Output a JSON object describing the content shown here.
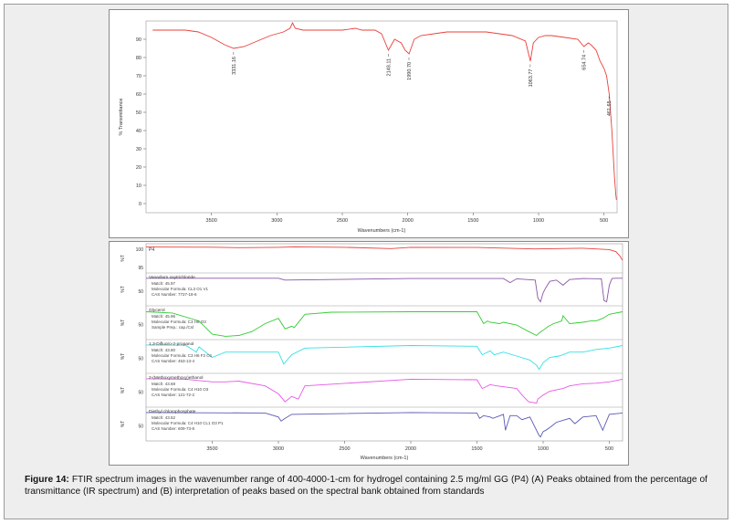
{
  "caption": {
    "label": "Figure 14:",
    "text": "FTIR spectrum images in the wavenumber range of 400-4000-1-cm for hydrogel containing 2.5 mg/ml GG (P4) (A) Peaks obtained from the percentage of transmittance (IR spectrum) and (B) interpretation of peaks based on the spectral bank obtained from standards"
  },
  "chart_data": [
    {
      "type": "line",
      "xlabel": "Wavenumbers (cm-1)",
      "ylabel": "% Transmittance",
      "x_reversed": true,
      "xlim": [
        4000,
        400
      ],
      "ylim": [
        -5,
        100
      ],
      "x_ticks": [
        3500,
        3000,
        2500,
        2000,
        1500,
        1000,
        500
      ],
      "y_ticks": [
        0,
        10,
        20,
        30,
        40,
        50,
        60,
        70,
        80,
        90
      ],
      "color": "#e8413c",
      "series": [
        {
          "x": [
            3950,
            3800,
            3700,
            3600,
            3500,
            3400,
            3331,
            3250,
            3150,
            3050,
            2950,
            2900,
            2880,
            2860,
            2800,
            2700,
            2600,
            2500,
            2400,
            2350,
            2250,
            2200,
            2148,
            2100,
            2050,
            2020,
            1990,
            1950,
            1900,
            1800,
            1700,
            1600,
            1500,
            1400,
            1300,
            1200,
            1100,
            1063,
            1040,
            1000,
            950,
            900,
            800,
            700,
            654,
            620,
            600,
            560,
            530,
            500,
            480,
            460,
            440,
            420,
            410,
            405
          ],
          "y": [
            95,
            95,
            95,
            94,
            91,
            87,
            85,
            86,
            89,
            92,
            94,
            96,
            99,
            96,
            95,
            95,
            95,
            95,
            96,
            95,
            95,
            93,
            84,
            90,
            88,
            84,
            82,
            90,
            92,
            93,
            94,
            94,
            94,
            94,
            93,
            92,
            89,
            78,
            88,
            91,
            92,
            92,
            91,
            90,
            86,
            88,
            87,
            84,
            78,
            74,
            70,
            60,
            40,
            15,
            5,
            2
          ]
        }
      ],
      "annotations": [
        {
          "x": 3331.16,
          "label": "3331.16"
        },
        {
          "x": 2148.11,
          "label": "2148.11"
        },
        {
          "x": 1990.7,
          "label": "1990.70"
        },
        {
          "x": 1063.77,
          "label": "1063.77"
        },
        {
          "x": 654.74,
          "label": "654.74"
        },
        {
          "x": 461.65,
          "label": "461.65"
        }
      ]
    },
    {
      "type": "line",
      "xlabel": "Wavenumbers (cm-1)",
      "x_reversed": true,
      "xlim": [
        4000,
        400
      ],
      "x_ticks": [
        3500,
        3000,
        2500,
        2000,
        1500,
        1000,
        500
      ],
      "series": [
        {
          "title": "P4",
          "color": "#e8413c",
          "ylabel": "%T",
          "y_ticks": [
            100,
            95
          ],
          "x": [
            4000,
            3500,
            3300,
            3000,
            2880,
            2500,
            2148,
            2000,
            1500,
            1063,
            700,
            600,
            500,
            450,
            420,
            400
          ],
          "y": [
            0.97,
            0.96,
            0.93,
            0.95,
            0.98,
            0.95,
            0.88,
            0.95,
            0.94,
            0.86,
            0.9,
            0.86,
            0.82,
            0.7,
            0.45,
            0.2
          ]
        },
        {
          "title": "Vanadium oxytrichloride",
          "color": "#8a55a6",
          "ylabel": "%T",
          "y_ticks": [
            50
          ],
          "match": "Match: 45.97",
          "formula": "Molecular Formula: CL3 O1 V1",
          "cas": "CAS Number: 7727-18-6",
          "extra": "",
          "x": [
            4000,
            3000,
            2950,
            2000,
            1300,
            1250,
            1200,
            1060,
            1040,
            1020,
            1000,
            980,
            950,
            900,
            850,
            800,
            700,
            560,
            540,
            520,
            500,
            480,
            450,
            400
          ],
          "y": [
            0.97,
            0.97,
            0.9,
            0.96,
            0.96,
            0.8,
            0.95,
            0.9,
            0.2,
            0.05,
            0.4,
            0.6,
            0.85,
            0.9,
            0.7,
            0.92,
            0.96,
            0.95,
            0.1,
            0.05,
            0.7,
            0.96,
            0.97,
            0.97
          ]
        },
        {
          "title": "Glycerol",
          "color": "#33cc33",
          "ylabel": "%T",
          "y_ticks": [
            50
          ],
          "match": "Match: 45.96",
          "formula": "Molecular Formula: C3 H8 O3",
          "cas": "",
          "extra": "Sample Prep.: cap./Csl",
          "x": [
            4000,
            3800,
            3600,
            3500,
            3400,
            3300,
            3200,
            3100,
            3000,
            2950,
            2900,
            2880,
            2800,
            2600,
            2000,
            1500,
            1450,
            1420,
            1400,
            1330,
            1300,
            1200,
            1110,
            1050,
            1030,
            1000,
            960,
            920,
            860,
            850,
            800,
            700,
            640,
            600,
            550,
            500,
            400
          ],
          "y": [
            0.95,
            0.9,
            0.6,
            0.1,
            0.02,
            0.05,
            0.2,
            0.5,
            0.7,
            0.3,
            0.4,
            0.35,
            0.85,
            0.93,
            0.95,
            0.95,
            0.5,
            0.6,
            0.55,
            0.5,
            0.55,
            0.45,
            0.2,
            0.05,
            0.15,
            0.25,
            0.4,
            0.5,
            0.6,
            0.8,
            0.5,
            0.55,
            0.6,
            0.6,
            0.7,
            0.85,
            0.95
          ]
        },
        {
          "title": "1,3-Difluoro-2-propanol",
          "color": "#33e0e6",
          "ylabel": "%T",
          "y_ticks": [
            50
          ],
          "match": "Match: 43.80",
          "formula": "Molecular Formula: C3 H6 F2 O1",
          "cas": "CAS Number: 453-13-4",
          "extra": "",
          "x": [
            4000,
            3700,
            3620,
            3600,
            3500,
            3400,
            3000,
            2960,
            2900,
            2800,
            2000,
            1500,
            1460,
            1400,
            1370,
            1300,
            1200,
            1100,
            1050,
            1030,
            1000,
            950,
            880,
            850,
            800,
            700,
            650,
            600,
            500,
            400
          ],
          "y": [
            0.97,
            0.96,
            0.7,
            0.9,
            0.5,
            0.7,
            0.7,
            0.25,
            0.6,
            0.85,
            0.95,
            0.92,
            0.6,
            0.75,
            0.6,
            0.7,
            0.55,
            0.4,
            0.2,
            0.05,
            0.3,
            0.5,
            0.55,
            0.6,
            0.7,
            0.7,
            0.75,
            0.8,
            0.85,
            0.95
          ]
        },
        {
          "title": "2-(Methoxymethoxy)ethanol",
          "color": "#e65ae6",
          "ylabel": "%T",
          "y_ticks": [
            50
          ],
          "match": "Match: 43.68",
          "formula": "Molecular Formula: C4 H10 O3",
          "cas": "CAS Number: 121-72-2",
          "extra": "",
          "x": [
            4000,
            3700,
            3500,
            3400,
            3300,
            3100,
            3000,
            2950,
            2900,
            2850,
            2800,
            2000,
            1500,
            1460,
            1400,
            1350,
            1200,
            1150,
            1110,
            1050,
            1040,
            1000,
            950,
            900,
            850,
            800,
            700,
            600,
            500,
            400
          ],
          "y": [
            0.97,
            0.95,
            0.85,
            0.85,
            0.88,
            0.7,
            0.4,
            0.1,
            0.3,
            0.2,
            0.7,
            0.95,
            0.93,
            0.6,
            0.75,
            0.7,
            0.6,
            0.3,
            0.1,
            0.05,
            0.2,
            0.35,
            0.5,
            0.55,
            0.6,
            0.7,
            0.78,
            0.8,
            0.85,
            0.95
          ]
        },
        {
          "title": "Diethyl chlorophosphate",
          "color": "#5a5ab4",
          "ylabel": "%T",
          "y_ticks": [
            50
          ],
          "match": "Match: 43.52",
          "formula": "Molecular Formula: C4 H10 CL1 O3 P1",
          "cas": "CAS Number: 609-73-8",
          "extra": "",
          "x": [
            4000,
            3100,
            3000,
            2980,
            2950,
            2900,
            2000,
            1500,
            1480,
            1450,
            1400,
            1380,
            1300,
            1285,
            1250,
            1200,
            1160,
            1100,
            1030,
            1020,
            1000,
            980,
            950,
            900,
            800,
            760,
            700,
            600,
            550,
            500,
            400
          ],
          "y": [
            0.97,
            0.95,
            0.8,
            0.65,
            0.75,
            0.9,
            0.97,
            0.95,
            0.75,
            0.85,
            0.8,
            0.75,
            0.9,
            0.3,
            0.85,
            0.85,
            0.7,
            0.8,
            0.1,
            0.05,
            0.25,
            0.3,
            0.4,
            0.6,
            0.75,
            0.55,
            0.8,
            0.85,
            0.3,
            0.9,
            0.95
          ]
        }
      ]
    }
  ]
}
